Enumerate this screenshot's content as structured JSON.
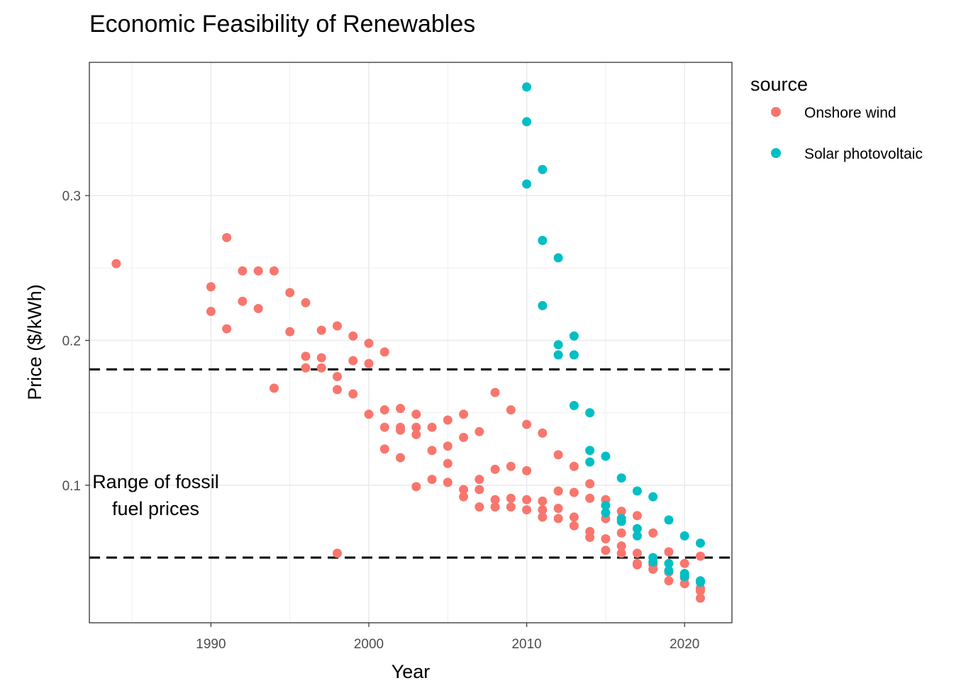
{
  "chart_data": {
    "type": "scatter",
    "title": "Economic Feasibility of Renewables",
    "xlabel": "Year",
    "ylabel": "Price ($/kWh)",
    "xlim": [
      1982.3,
      2023.0
    ],
    "ylim": [
      0.005,
      0.392
    ],
    "x_ticks": [
      1990,
      2000,
      2010,
      2020
    ],
    "y_ticks": [
      0.1,
      0.2,
      0.3
    ],
    "x_tick_labels": [
      "1990",
      "2000",
      "2010",
      "2020"
    ],
    "y_tick_labels": [
      "0.1",
      "0.2",
      "0.3"
    ],
    "grid": true,
    "legend": {
      "title": "source",
      "position": "right"
    },
    "hlines": [
      0.18,
      0.05
    ],
    "annotation": {
      "x": 1986.5,
      "y": 0.093,
      "lines": [
        "Range of fossil",
        "fuel prices"
      ]
    },
    "series": [
      {
        "name": "Onshore wind",
        "color": "#F8766D",
        "points": [
          [
            1984,
            0.253
          ],
          [
            1990,
            0.237
          ],
          [
            1990,
            0.22
          ],
          [
            1991,
            0.271
          ],
          [
            1991,
            0.208
          ],
          [
            1992,
            0.248
          ],
          [
            1992,
            0.227
          ],
          [
            1993,
            0.248
          ],
          [
            1993,
            0.222
          ],
          [
            1994,
            0.248
          ],
          [
            1994,
            0.167
          ],
          [
            1995,
            0.233
          ],
          [
            1995,
            0.206
          ],
          [
            1996,
            0.226
          ],
          [
            1996,
            0.189
          ],
          [
            1996,
            0.181
          ],
          [
            1997,
            0.207
          ],
          [
            1997,
            0.188
          ],
          [
            1997,
            0.181
          ],
          [
            1998,
            0.21
          ],
          [
            1998,
            0.175
          ],
          [
            1998,
            0.166
          ],
          [
            1998,
            0.053
          ],
          [
            1999,
            0.203
          ],
          [
            1999,
            0.186
          ],
          [
            1999,
            0.163
          ],
          [
            2000,
            0.198
          ],
          [
            2000,
            0.184
          ],
          [
            2000,
            0.149
          ],
          [
            2001,
            0.192
          ],
          [
            2001,
            0.152
          ],
          [
            2001,
            0.14
          ],
          [
            2001,
            0.125
          ],
          [
            2002,
            0.153
          ],
          [
            2002,
            0.14
          ],
          [
            2002,
            0.138
          ],
          [
            2002,
            0.119
          ],
          [
            2003,
            0.149
          ],
          [
            2003,
            0.14
          ],
          [
            2003,
            0.135
          ],
          [
            2003,
            0.099
          ],
          [
            2004,
            0.14
          ],
          [
            2004,
            0.124
          ],
          [
            2004,
            0.104
          ],
          [
            2005,
            0.145
          ],
          [
            2005,
            0.127
          ],
          [
            2005,
            0.115
          ],
          [
            2005,
            0.102
          ],
          [
            2006,
            0.149
          ],
          [
            2006,
            0.133
          ],
          [
            2006,
            0.097
          ],
          [
            2006,
            0.092
          ],
          [
            2007,
            0.137
          ],
          [
            2007,
            0.104
          ],
          [
            2007,
            0.097
          ],
          [
            2007,
            0.085
          ],
          [
            2008,
            0.164
          ],
          [
            2008,
            0.111
          ],
          [
            2008,
            0.09
          ],
          [
            2008,
            0.085
          ],
          [
            2009,
            0.152
          ],
          [
            2009,
            0.113
          ],
          [
            2009,
            0.091
          ],
          [
            2009,
            0.085
          ],
          [
            2010,
            0.142
          ],
          [
            2010,
            0.11
          ],
          [
            2010,
            0.09
          ],
          [
            2010,
            0.083
          ],
          [
            2011,
            0.136
          ],
          [
            2011,
            0.089
          ],
          [
            2011,
            0.083
          ],
          [
            2011,
            0.078
          ],
          [
            2012,
            0.121
          ],
          [
            2012,
            0.096
          ],
          [
            2012,
            0.084
          ],
          [
            2012,
            0.077
          ],
          [
            2013,
            0.113
          ],
          [
            2013,
            0.095
          ],
          [
            2013,
            0.078
          ],
          [
            2013,
            0.072
          ],
          [
            2014,
            0.101
          ],
          [
            2014,
            0.091
          ],
          [
            2014,
            0.068
          ],
          [
            2014,
            0.064
          ],
          [
            2015,
            0.09
          ],
          [
            2015,
            0.077
          ],
          [
            2015,
            0.063
          ],
          [
            2015,
            0.055
          ],
          [
            2016,
            0.082
          ],
          [
            2016,
            0.067
          ],
          [
            2016,
            0.058
          ],
          [
            2016,
            0.053
          ],
          [
            2017,
            0.079
          ],
          [
            2017,
            0.053
          ],
          [
            2017,
            0.046
          ],
          [
            2017,
            0.045
          ],
          [
            2018,
            0.067
          ],
          [
            2018,
            0.045
          ],
          [
            2018,
            0.042
          ],
          [
            2019,
            0.054
          ],
          [
            2019,
            0.04
          ],
          [
            2019,
            0.034
          ],
          [
            2020,
            0.046
          ],
          [
            2020,
            0.036
          ],
          [
            2020,
            0.032
          ],
          [
            2021,
            0.051
          ],
          [
            2021,
            0.029
          ],
          [
            2021,
            0.027
          ],
          [
            2021,
            0.022
          ]
        ]
      },
      {
        "name": "Solar photovoltaic",
        "color": "#00BFC4",
        "points": [
          [
            2010,
            0.375
          ],
          [
            2010,
            0.351
          ],
          [
            2010,
            0.308
          ],
          [
            2011,
            0.318
          ],
          [
            2011,
            0.269
          ],
          [
            2011,
            0.224
          ],
          [
            2012,
            0.257
          ],
          [
            2012,
            0.197
          ],
          [
            2012,
            0.19
          ],
          [
            2013,
            0.203
          ],
          [
            2013,
            0.19
          ],
          [
            2013,
            0.155
          ],
          [
            2014,
            0.15
          ],
          [
            2014,
            0.124
          ],
          [
            2014,
            0.116
          ],
          [
            2015,
            0.12
          ],
          [
            2015,
            0.086
          ],
          [
            2015,
            0.081
          ],
          [
            2016,
            0.105
          ],
          [
            2016,
            0.077
          ],
          [
            2016,
            0.075
          ],
          [
            2017,
            0.096
          ],
          [
            2017,
            0.07
          ],
          [
            2017,
            0.065
          ],
          [
            2018,
            0.092
          ],
          [
            2018,
            0.05
          ],
          [
            2018,
            0.047
          ],
          [
            2019,
            0.076
          ],
          [
            2019,
            0.046
          ],
          [
            2019,
            0.041
          ],
          [
            2020,
            0.065
          ],
          [
            2020,
            0.039
          ],
          [
            2020,
            0.037
          ],
          [
            2021,
            0.06
          ],
          [
            2021,
            0.034
          ],
          [
            2021,
            0.033
          ]
        ]
      }
    ]
  }
}
